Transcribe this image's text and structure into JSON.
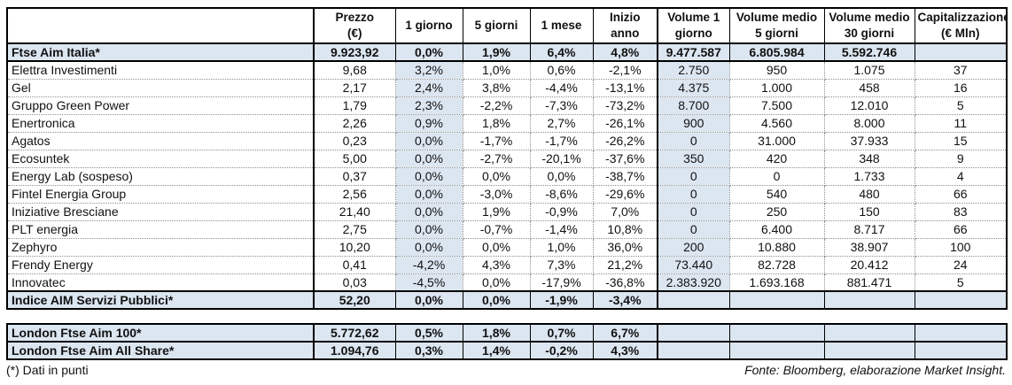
{
  "colors": {
    "highlight_blue": "#dce6f1",
    "border_black": "#000000",
    "dotted_gray": "#8f8f8f",
    "text": "#111111"
  },
  "main_table": {
    "headers": [
      "",
      "Prezzo\n(€)",
      "1 giorno",
      "5 giorni",
      "1 mese",
      "Inizio anno",
      "Volume 1\ngiorno",
      "Volume medio\n5 giorni",
      "Volume medio\n30 giorni",
      "Capitalizzazione\n(€ Mln)"
    ],
    "rows": [
      {
        "type": "index",
        "name": "Ftse Aim Italia*",
        "values": [
          "9.923,92",
          "0,0%",
          "1,9%",
          "6,4%",
          "4,8%",
          "9.477.587",
          "6.805.984",
          "5.592.746",
          ""
        ]
      },
      {
        "type": "stock",
        "name": "Elettra Investimenti",
        "values": [
          "9,68",
          "3,2%",
          "1,0%",
          "0,6%",
          "-2,1%",
          "2.750",
          "950",
          "1.075",
          "37"
        ]
      },
      {
        "type": "stock",
        "name": "Gel",
        "values": [
          "2,17",
          "2,4%",
          "3,8%",
          "-4,4%",
          "-13,1%",
          "4.375",
          "1.000",
          "458",
          "16"
        ]
      },
      {
        "type": "stock",
        "name": "Gruppo Green Power",
        "values": [
          "1,79",
          "2,3%",
          "-2,2%",
          "-7,3%",
          "-73,2%",
          "8.700",
          "7.500",
          "12.010",
          "5"
        ]
      },
      {
        "type": "stock",
        "name": "Enertronica",
        "values": [
          "2,26",
          "0,9%",
          "1,8%",
          "2,7%",
          "-26,1%",
          "900",
          "4.560",
          "8.000",
          "11"
        ]
      },
      {
        "type": "stock",
        "name": "Agatos",
        "values": [
          "0,23",
          "0,0%",
          "-1,7%",
          "-1,7%",
          "-26,2%",
          "0",
          "31.000",
          "37.933",
          "15"
        ]
      },
      {
        "type": "stock",
        "name": "Ecosuntek",
        "values": [
          "5,00",
          "0,0%",
          "-2,7%",
          "-20,1%",
          "-37,6%",
          "350",
          "420",
          "348",
          "9"
        ]
      },
      {
        "type": "stock",
        "name": "Energy Lab (sospeso)",
        "values": [
          "0,37",
          "0,0%",
          "0,0%",
          "0,0%",
          "-38,7%",
          "0",
          "0",
          "1.733",
          "4"
        ]
      },
      {
        "type": "stock",
        "name": "Fintel Energia Group",
        "values": [
          "2,56",
          "0,0%",
          "-3,0%",
          "-8,6%",
          "-29,6%",
          "0",
          "540",
          "480",
          "66"
        ]
      },
      {
        "type": "stock",
        "name": "Iniziative Bresciane",
        "values": [
          "21,40",
          "0,0%",
          "1,9%",
          "-0,9%",
          "7,0%",
          "0",
          "250",
          "150",
          "83"
        ]
      },
      {
        "type": "stock",
        "name": "PLT energia",
        "values": [
          "2,75",
          "0,0%",
          "-0,7%",
          "-1,4%",
          "10,8%",
          "0",
          "6.400",
          "8.717",
          "66"
        ]
      },
      {
        "type": "stock",
        "name": "Zephyro",
        "values": [
          "10,20",
          "0,0%",
          "0,0%",
          "1,0%",
          "36,0%",
          "200",
          "10.880",
          "38.907",
          "100"
        ]
      },
      {
        "type": "stock",
        "name": "Frendy Energy",
        "values": [
          "0,41",
          "-4,2%",
          "4,3%",
          "7,3%",
          "21,2%",
          "73.440",
          "82.728",
          "20.412",
          "24"
        ]
      },
      {
        "type": "stock",
        "name": "Innovatec",
        "values": [
          "0,03",
          "-4,5%",
          "0,0%",
          "-17,9%",
          "-36,8%",
          "2.383.920",
          "1.693.168",
          "881.471",
          "5"
        ]
      },
      {
        "type": "index",
        "name": "Indice AIM Servizi Pubblici*",
        "values": [
          "52,20",
          "0,0%",
          "0,0%",
          "-1,9%",
          "-3,4%",
          "",
          "",
          "",
          ""
        ]
      }
    ]
  },
  "london_table": {
    "rows": [
      {
        "type": "index",
        "name": "London Ftse Aim 100*",
        "values": [
          "5.772,62",
          "0,5%",
          "1,8%",
          "0,7%",
          "6,7%",
          "",
          "",
          "",
          ""
        ]
      },
      {
        "type": "index",
        "name": "London Ftse Aim All Share*",
        "values": [
          "1.094,76",
          "0,3%",
          "1,4%",
          "-0,2%",
          "4,3%",
          "",
          "",
          "",
          ""
        ]
      }
    ]
  },
  "footer": {
    "note": "(*) Dati in punti",
    "source": "Fonte: Bloomberg, elaborazione Market Insight."
  }
}
